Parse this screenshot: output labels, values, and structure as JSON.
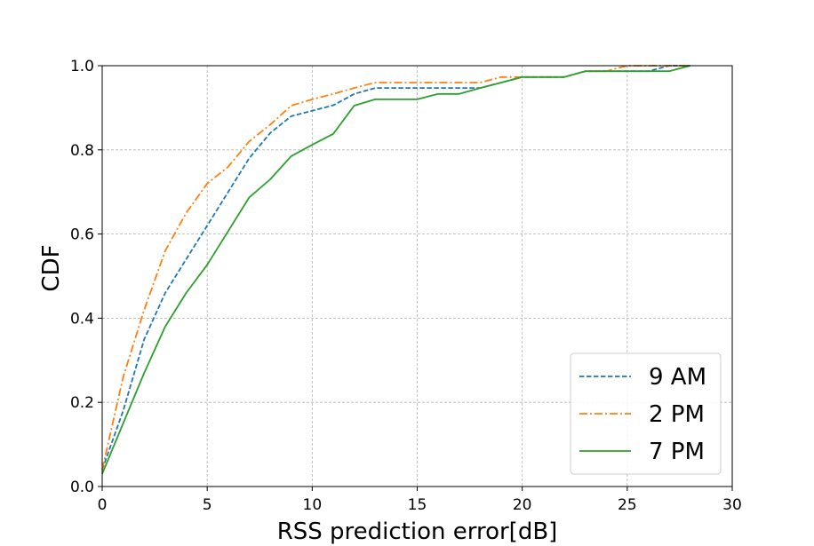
{
  "chart_data": {
    "type": "line",
    "title": "",
    "xlabel": "RSS prediction error[dB]",
    "ylabel": "CDF",
    "xlim": [
      0,
      30
    ],
    "ylim": [
      0,
      1.0
    ],
    "xticks": [
      0,
      5,
      10,
      15,
      20,
      25,
      30
    ],
    "yticks": [
      0.0,
      0.2,
      0.4,
      0.6,
      0.8,
      1.0
    ],
    "xtick_labels": [
      "0",
      "5",
      "10",
      "15",
      "20",
      "25",
      "30"
    ],
    "ytick_labels": [
      "0.0",
      "0.2",
      "0.4",
      "0.6",
      "0.8",
      "1.0"
    ],
    "grid": true,
    "legend_position": "lower-right",
    "series": [
      {
        "name": "9 AM",
        "color": "#1f77b4",
        "style": "dashed",
        "x": [
          0,
          1,
          2,
          3,
          4,
          5,
          6,
          7,
          8,
          9,
          10,
          11,
          12,
          13,
          14,
          15,
          16,
          17,
          18,
          19,
          20,
          21,
          22,
          23,
          24,
          25,
          26,
          27,
          28
        ],
        "y": [
          0.04,
          0.18,
          0.35,
          0.46,
          0.54,
          0.62,
          0.7,
          0.78,
          0.84,
          0.88,
          0.893,
          0.906,
          0.933,
          0.947,
          0.947,
          0.947,
          0.947,
          0.947,
          0.947,
          0.96,
          0.973,
          0.973,
          0.973,
          0.987,
          0.987,
          0.987,
          0.987,
          1.0,
          1.0
        ]
      },
      {
        "name": "2 PM",
        "color": "#ff7f0e",
        "style": "dashdot",
        "x": [
          0,
          1,
          2,
          3,
          4,
          5,
          6,
          7,
          8,
          9,
          10,
          11,
          12,
          13,
          14,
          15,
          16,
          17,
          18,
          19,
          20,
          21,
          22,
          23,
          24,
          25,
          26,
          27,
          28
        ],
        "y": [
          0.04,
          0.26,
          0.42,
          0.56,
          0.65,
          0.72,
          0.76,
          0.82,
          0.86,
          0.905,
          0.92,
          0.933,
          0.947,
          0.96,
          0.96,
          0.96,
          0.96,
          0.96,
          0.96,
          0.973,
          0.973,
          0.973,
          0.973,
          0.987,
          0.987,
          1.0,
          1.0,
          1.0,
          1.0
        ]
      },
      {
        "name": "7 PM",
        "color": "#2ca02c",
        "style": "solid",
        "x": [
          0,
          1,
          2,
          3,
          4,
          5,
          6,
          7,
          8,
          9,
          10,
          11,
          12,
          13,
          14,
          15,
          16,
          17,
          18,
          19,
          20,
          21,
          22,
          23,
          24,
          25,
          26,
          27,
          28
        ],
        "y": [
          0.03,
          0.15,
          0.27,
          0.38,
          0.46,
          0.527,
          0.607,
          0.687,
          0.73,
          0.785,
          0.812,
          0.838,
          0.905,
          0.92,
          0.92,
          0.92,
          0.933,
          0.933,
          0.947,
          0.96,
          0.973,
          0.973,
          0.973,
          0.987,
          0.987,
          0.987,
          0.987,
          0.987,
          1.0
        ]
      }
    ]
  }
}
